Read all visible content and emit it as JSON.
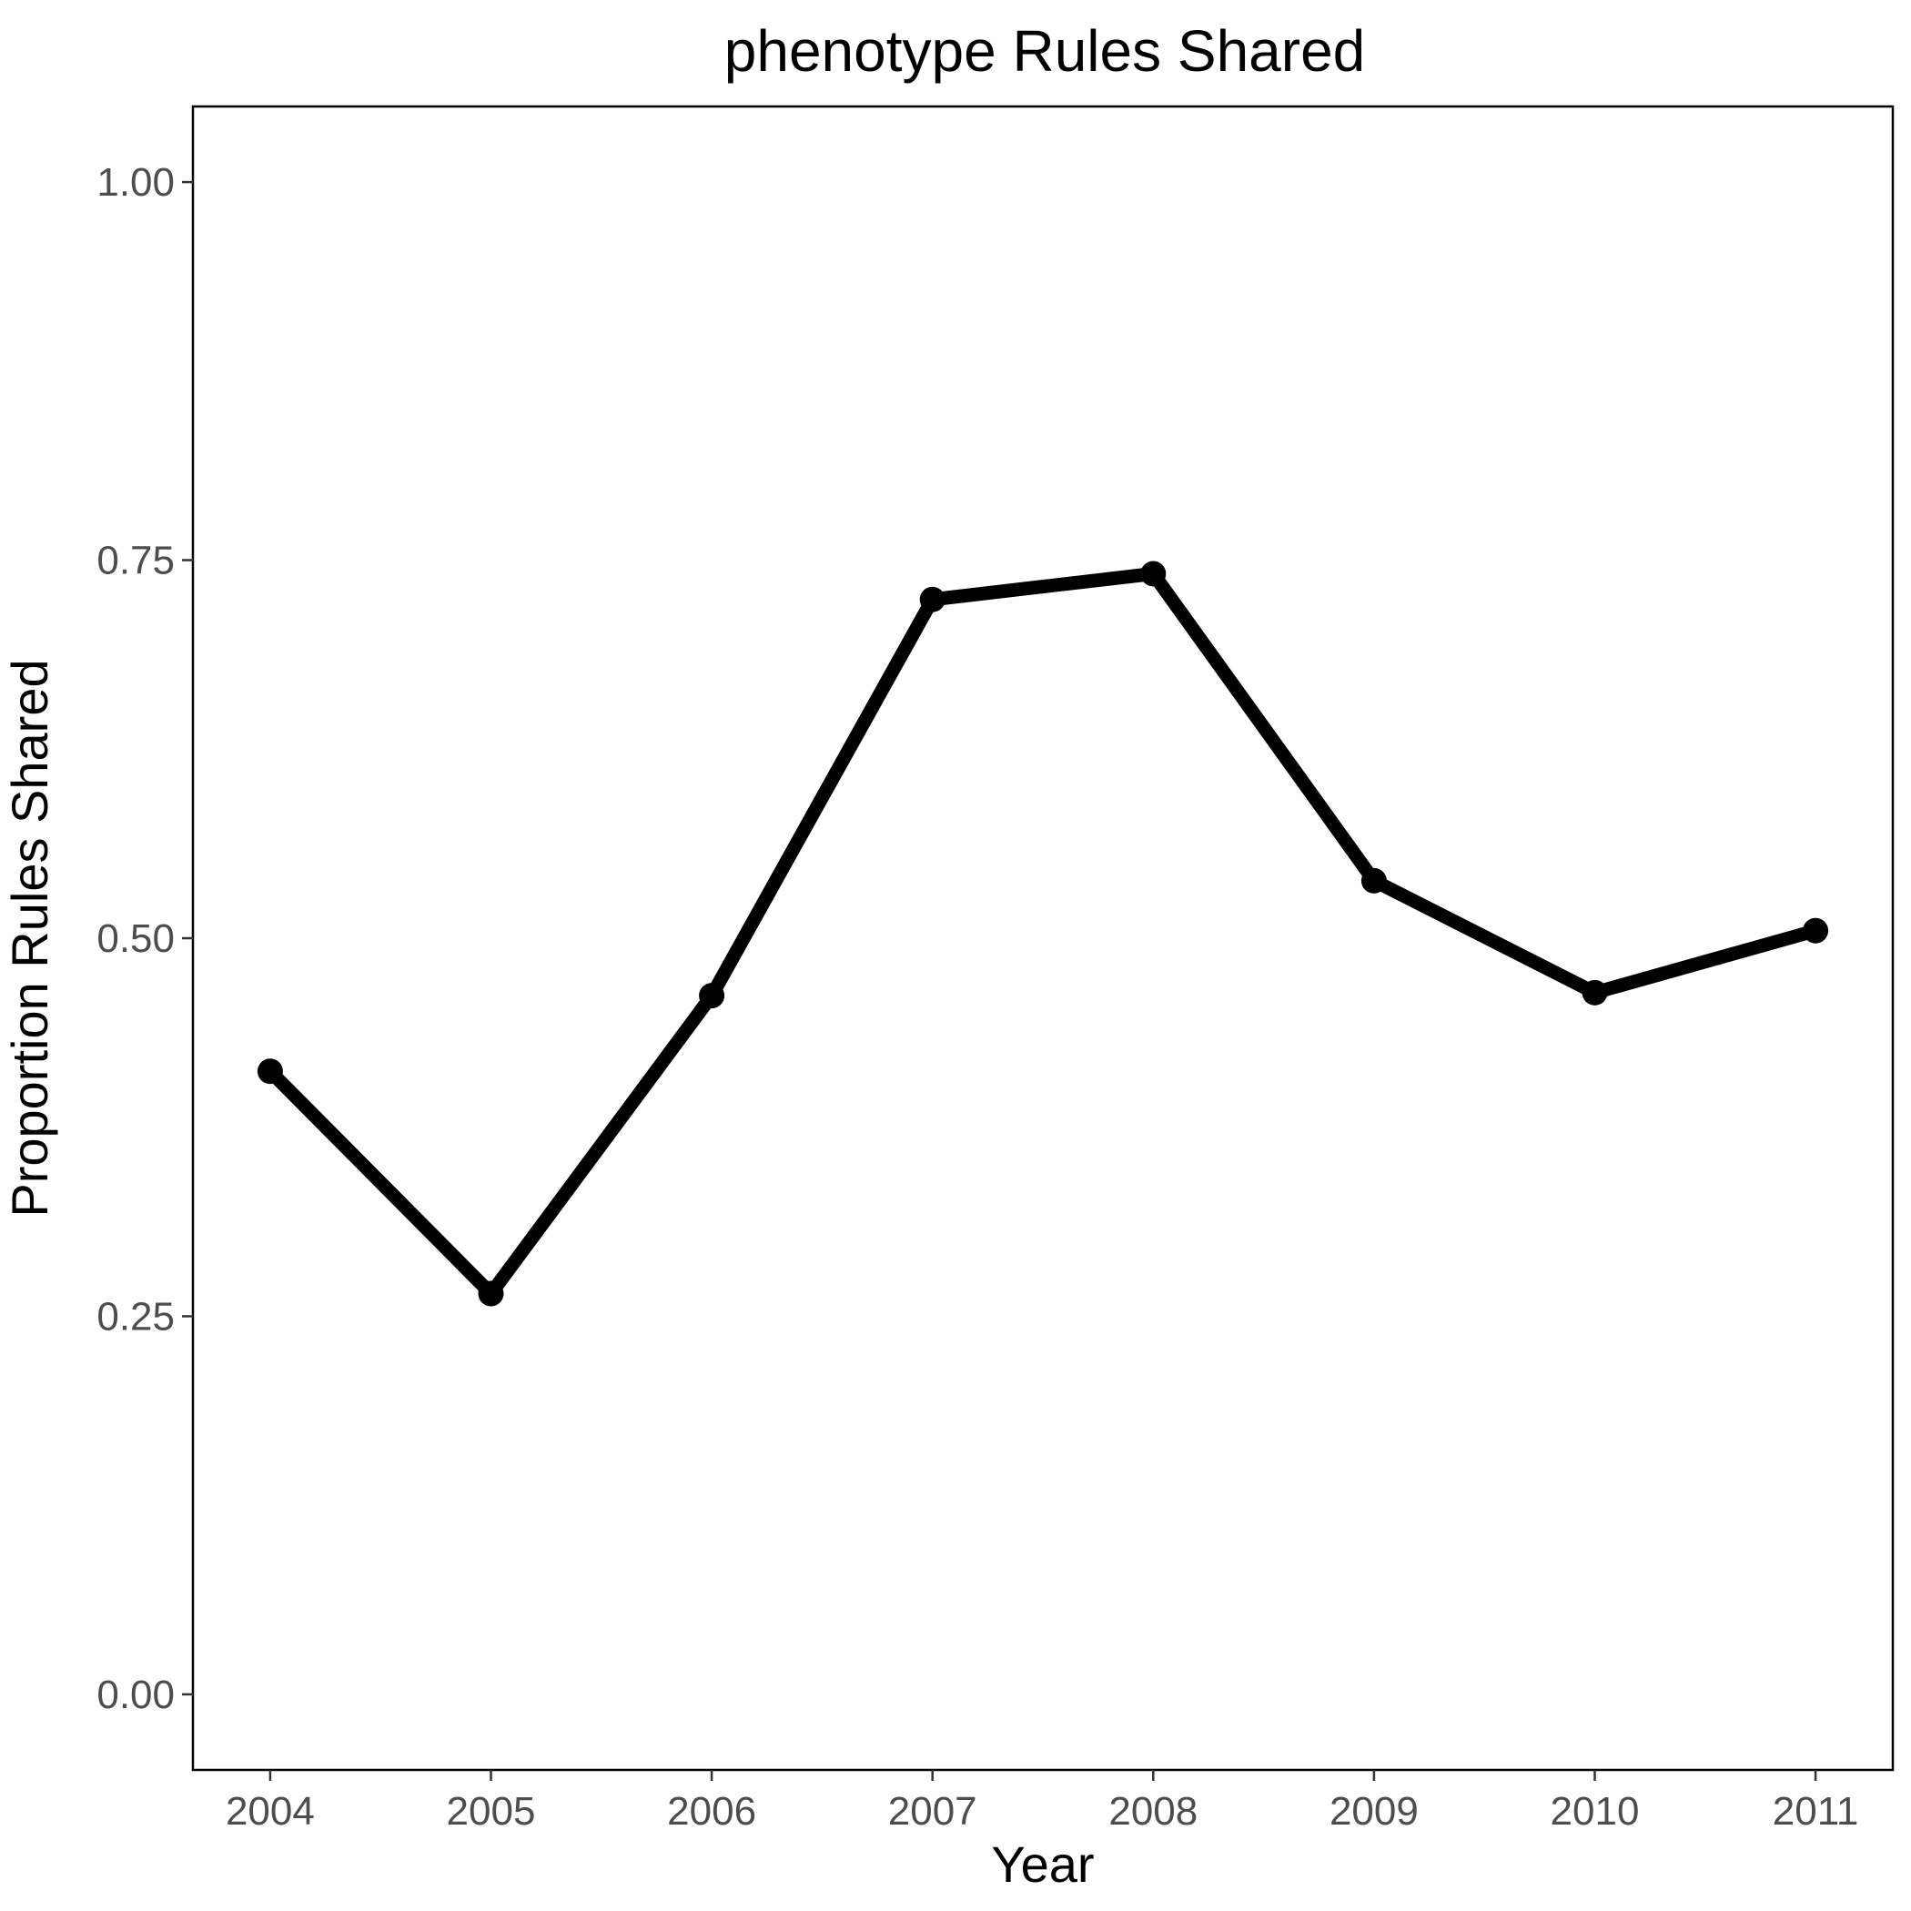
{
  "chart_data": {
    "type": "line",
    "title": "phenotype Rules Shared",
    "xlabel": "Year",
    "ylabel": "Proportion Rules Shared",
    "x": [
      2004,
      2005,
      2006,
      2007,
      2008,
      2009,
      2010,
      2011
    ],
    "series": [
      {
        "values": [
          0.412,
          0.265,
          0.462,
          0.724,
          0.741,
          0.538,
          0.464,
          0.505
        ]
      }
    ],
    "xlim": [
      2003.65,
      2011.35
    ],
    "ylim": [
      -0.05,
      1.05
    ],
    "yticks": [
      0,
      0.25,
      0.5,
      0.75,
      1
    ],
    "ytick_labels": [
      "0.00",
      "0.25",
      "0.50",
      "0.75",
      "1.00"
    ],
    "xtick_labels": [
      "2004",
      "2005",
      "2006",
      "2007",
      "2008",
      "2009",
      "2010",
      "2011"
    ],
    "grid": false,
    "legend": "none",
    "line_color": "#000000",
    "tick_label_color": "#4d4d4d"
  }
}
